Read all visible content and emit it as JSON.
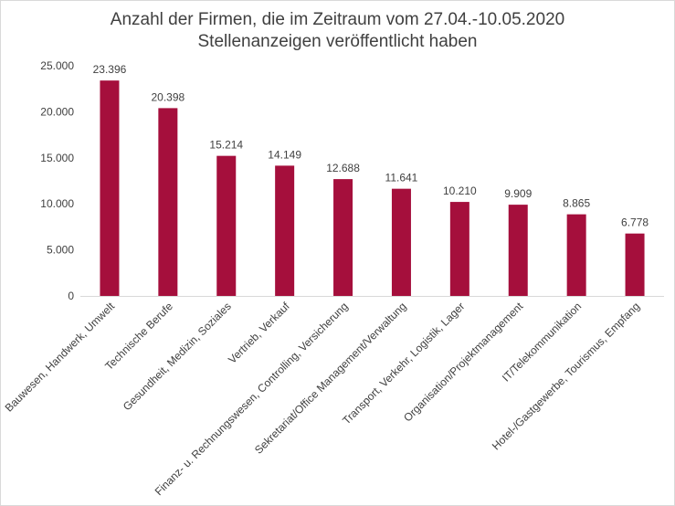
{
  "chart_data": {
    "type": "bar",
    "title_line1": "Anzahl der Firmen, die im Zeitraum vom 27.04.-10.05.2020",
    "title_line2": "Stellenanzeigen veröffentlicht haben",
    "categories": [
      "Bauwesen, Handwerk, Umwelt",
      "Technische Berufe",
      "Gesundheit, Medizin, Soziales",
      "Vertrieb, Verkauf",
      "Finanz- u. Rechnungswesen, Controlling, Versicherung",
      "Sekretariat/Office Management/Verwaltung",
      "Transport, Verkehr, Logistik, Lager",
      "Organisation/Projektmanagement",
      "IT/Telekommunikation",
      "Hotel-/Gastgewerbe, Tourismus, Empfang"
    ],
    "values": [
      23396,
      20398,
      15214,
      14149,
      12688,
      11641,
      10210,
      9909,
      8865,
      6778
    ],
    "value_labels": [
      "23.396",
      "20.398",
      "15.214",
      "14.149",
      "12.688",
      "11.641",
      "10.210",
      "9.909",
      "8.865",
      "6.778"
    ],
    "ylim": [
      0,
      25000
    ],
    "yticks": [
      0,
      5000,
      10000,
      15000,
      20000,
      25000
    ],
    "ytick_labels": [
      "0",
      "5.000",
      "10.000",
      "15.000",
      "20.000",
      "25.000"
    ],
    "bar_color": "#a50f3c",
    "grid": false,
    "legend": "none"
  }
}
